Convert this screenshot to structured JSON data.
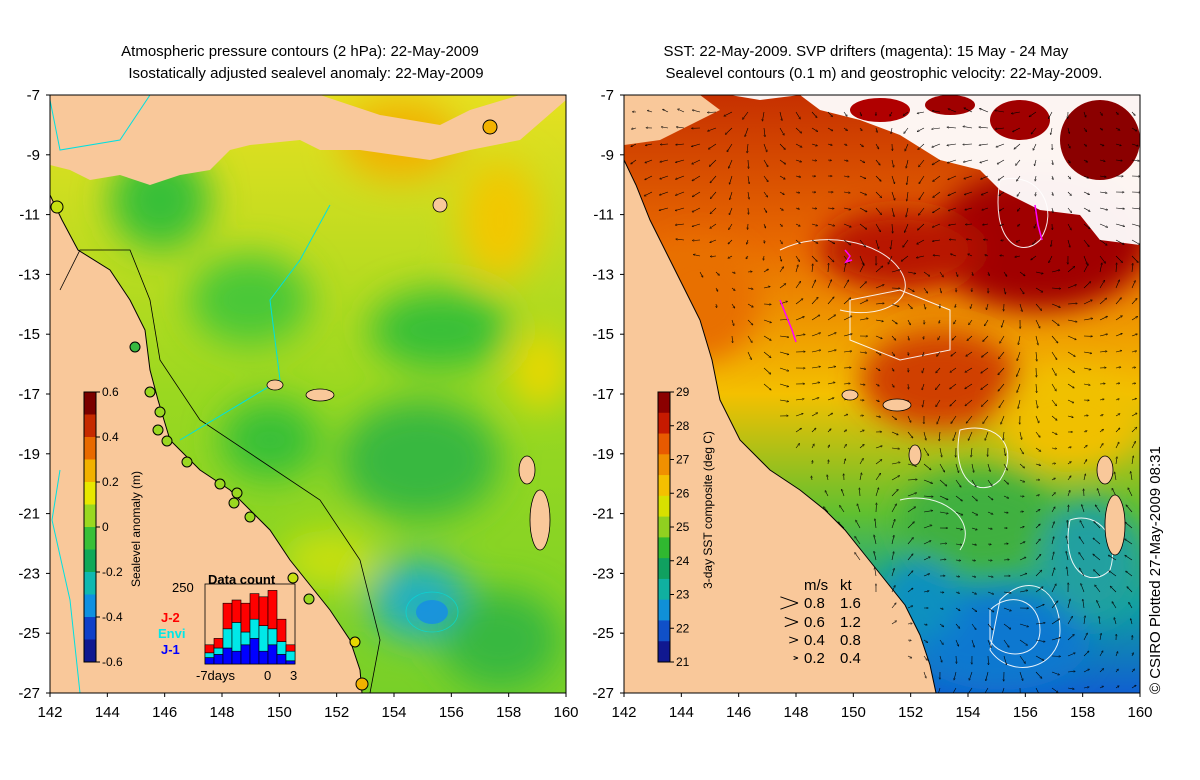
{
  "left_panel": {
    "title_line1": "Atmospheric pressure contours (2 hPa): 22-May-2009",
    "title_line2": "Isostatically adjusted sealevel anomaly: 22-May-2009",
    "colorbar": {
      "label": "Sealevel anomaly (m)",
      "ticks": [
        "0.6",
        "0.4",
        "0.2",
        "0",
        "-0.2",
        "-0.4",
        "-0.6"
      ],
      "colors": [
        "#7a0000",
        "#c62a00",
        "#e86a00",
        "#f2b200",
        "#e8e800",
        "#9ad820",
        "#38c038",
        "#10a858",
        "#10b8b0",
        "#1090e0",
        "#1040c8",
        "#101890"
      ]
    },
    "data_count": {
      "title": "Data count",
      "ymax_label": "250",
      "x_labels": [
        "-7days",
        "0",
        "3"
      ],
      "legend": [
        {
          "label": "J-2",
          "color": "#ff0000"
        },
        {
          "label": "Envi",
          "color": "#00e8e8"
        },
        {
          "label": "J-1",
          "color": "#0000ff"
        }
      ],
      "bars": [
        {
          "j1": 20,
          "envi": 15,
          "j2": 25
        },
        {
          "j1": 30,
          "envi": 20,
          "j2": 30
        },
        {
          "j1": 50,
          "envi": 60,
          "j2": 80
        },
        {
          "j1": 40,
          "envi": 90,
          "j2": 70
        },
        {
          "j1": 60,
          "envi": 40,
          "j2": 90
        },
        {
          "j1": 80,
          "envi": 60,
          "j2": 80
        },
        {
          "j1": 40,
          "envi": 80,
          "j2": 90
        },
        {
          "j1": 60,
          "envi": 50,
          "j2": 120
        },
        {
          "j1": 30,
          "envi": 40,
          "j2": 70
        },
        {
          "j1": 10,
          "envi": 30,
          "j2": 20
        }
      ]
    }
  },
  "right_panel": {
    "title_line1": "SST: 22-May-2009. SVP drifters (magenta): 15 May - 24 May",
    "title_line2": "Sealevel contours (0.1 m) and geostrophic velocity: 22-May-2009.",
    "colorbar": {
      "label": "3-day SST composite (deg C)",
      "ticks": [
        "29",
        "28",
        "27",
        "26",
        "25",
        "24",
        "23",
        "22",
        "21"
      ],
      "colors": [
        "#8b0000",
        "#c61a00",
        "#e85a00",
        "#f09000",
        "#f4c000",
        "#d8e000",
        "#90d020",
        "#30b830",
        "#10a060",
        "#10b0a0",
        "#1090d8",
        "#1050c8",
        "#101890"
      ]
    },
    "speed_legend": {
      "header_ms": "m/s",
      "header_kt": "kt",
      "rows": [
        {
          "ms": "0.8",
          "kt": "1.6"
        },
        {
          "ms": "0.6",
          "kt": "1.2"
        },
        {
          "ms": "0.4",
          "kt": "0.8"
        },
        {
          "ms": "0.2",
          "kt": "0.4"
        }
      ]
    }
  },
  "axes": {
    "x_labels": [
      "142",
      "144",
      "146",
      "148",
      "150",
      "152",
      "154",
      "156",
      "158",
      "160"
    ],
    "y_labels": [
      "-7",
      "-9",
      "-11",
      "-13",
      "-15",
      "-17",
      "-19",
      "-21",
      "-23",
      "-25",
      "-27"
    ]
  },
  "colors": {
    "land": "#f9c89a",
    "magenta": "#ff00ff",
    "cyan": "#00e0e0",
    "cloud": "#ffffff"
  },
  "copyright": "© CSIRO Plotted 27-May-2009 08:31"
}
